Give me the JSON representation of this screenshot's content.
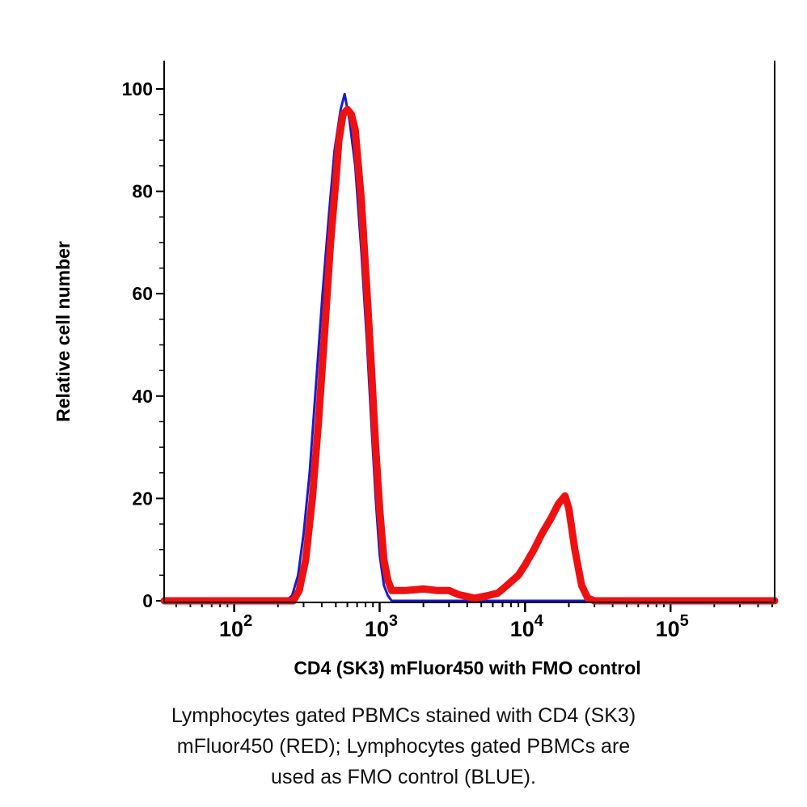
{
  "chart_data": {
    "type": "line",
    "title": "",
    "xlabel": "CD4 (SK3) mFluor450 with FMO control",
    "ylabel": "Relative cell number",
    "xscale": "log",
    "xlim": [
      33,
      520000
    ],
    "ylim": [
      0,
      100
    ],
    "x_ticks": [
      {
        "base": "10",
        "exp": "2",
        "value": 100
      },
      {
        "base": "10",
        "exp": "3",
        "value": 1000
      },
      {
        "base": "10",
        "exp": "4",
        "value": 10000
      },
      {
        "base": "10",
        "exp": "5",
        "value": 100000
      }
    ],
    "y_ticks": [
      "0",
      "20",
      "40",
      "60",
      "80",
      "100"
    ],
    "grid": false,
    "series": [
      {
        "color": "#1a1ad0",
        "x": [
          33,
          150,
          225,
          250,
          275,
          300,
          330,
          365,
          405,
          450,
          490,
          540,
          575,
          620,
          680,
          750,
          820,
          880,
          940,
          1000,
          1070,
          1140,
          1210,
          2000,
          10000,
          100000,
          520000
        ],
        "y": [
          0,
          0,
          0,
          1,
          5,
          13,
          25,
          42,
          60,
          76,
          88,
          96,
          99,
          94,
          85,
          68,
          50,
          34,
          20,
          9,
          3,
          1,
          0,
          0,
          0,
          0,
          0
        ]
      },
      {
        "color": "#ee1111",
        "x": [
          33,
          150,
          255,
          280,
          310,
          345,
          380,
          420,
          460,
          500,
          525,
          560,
          600,
          640,
          680,
          750,
          820,
          880,
          940,
          1000,
          1070,
          1140,
          1210,
          1500,
          2000,
          2500,
          3000,
          3500,
          4500,
          5500,
          6500,
          7500,
          9000,
          10000,
          11500,
          13000,
          15000,
          17000,
          18800,
          20000,
          22000,
          24500,
          27000,
          30000,
          100000,
          520000
        ],
        "y": [
          0,
          0,
          0,
          2,
          8,
          20,
          35,
          53,
          70,
          82,
          90,
          95,
          96,
          95,
          92,
          78,
          60,
          45,
          30,
          18,
          8,
          4,
          2,
          2,
          2.3,
          2,
          2,
          1.2,
          0.5,
          1,
          1.5,
          3,
          5,
          7,
          10,
          13,
          16,
          19,
          20.5,
          18,
          10,
          3,
          0.5,
          0,
          0,
          0
        ]
      }
    ]
  },
  "caption": [
    "Lymphocytes gated PBMCs stained with CD4 (SK3)",
    "mFluor450 (RED); Lymphocytes gated PBMCs are",
    "used as FMO control (BLUE)."
  ]
}
